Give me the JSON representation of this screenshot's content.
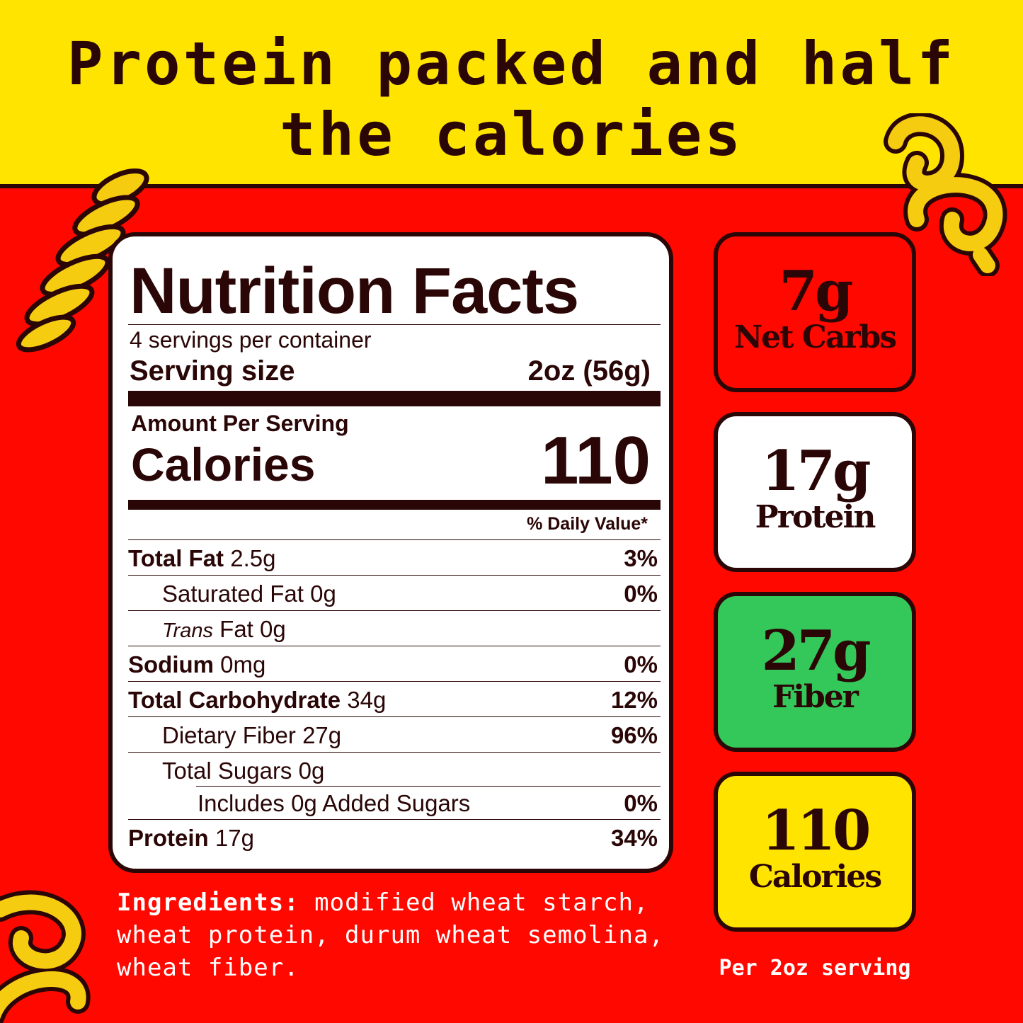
{
  "headline": "Protein packed and half the calories",
  "colors": {
    "yellow": "#FFE400",
    "red": "#FF0800",
    "dark": "#2a0606",
    "green": "#34C759",
    "white": "#FFFFFF"
  },
  "nutrition": {
    "title": "Nutrition Facts",
    "servings": "4 servings per container",
    "serving_size_label": "Serving size",
    "serving_size_value": "2oz (56g)",
    "amount_per_serving": "Amount Per Serving",
    "calories_label": "Calories",
    "calories_value": "110",
    "daily_value_header": "% Daily Value*",
    "rows": [
      {
        "name": "Total Fat",
        "amount": "2.5g",
        "dv": "3%"
      },
      {
        "name": "Saturated Fat",
        "amount": "0g",
        "dv": "0%"
      },
      {
        "name_italic": "Trans",
        "name": "Fat",
        "amount": "0g",
        "dv": ""
      },
      {
        "name": "Sodium",
        "amount": "0mg",
        "dv": "0%"
      },
      {
        "name": "Total Carbohydrate",
        "amount": "34g",
        "dv": "12%"
      },
      {
        "name": "Dietary Fiber",
        "amount": "27g",
        "dv": "96%"
      },
      {
        "name": "Total Sugars",
        "amount": "0g",
        "dv": ""
      },
      {
        "name": "Includes 0g Added Sugars",
        "amount": "",
        "dv": "0%"
      },
      {
        "name": "Protein",
        "amount": "17g",
        "dv": "34%"
      }
    ]
  },
  "highlights": [
    {
      "value": "7g",
      "label": "Net Carbs",
      "color": "#FF0800"
    },
    {
      "value": "17g",
      "label": "Protein",
      "color": "#FFFFFF"
    },
    {
      "value": "27g",
      "label": "Fiber",
      "color": "#34C759"
    },
    {
      "value": "110",
      "label": "Calories",
      "color": "#FFE400"
    }
  ],
  "ingredients": {
    "label": "Ingredients:",
    "text": "modified wheat starch, wheat protein, durum wheat semolina, wheat fiber."
  },
  "per_serving": "Per 2oz serving"
}
